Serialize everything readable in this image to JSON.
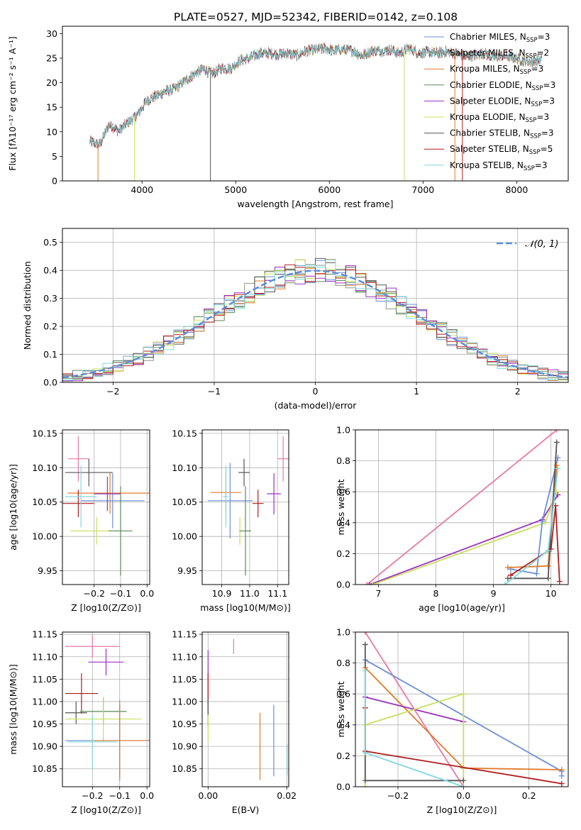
{
  "page": {
    "title": "PLATE=0527, MJD=52342, FIBERID=0142, z=0.108"
  },
  "colors": {
    "chabrier_miles": "#6a8fd8",
    "salpeter_miles": "#8a9a8a",
    "kroupa_miles": "#e07b2a",
    "chabrier_elodie": "#5a8a5a",
    "salpeter_elodie": "#9b30c0",
    "kroupa_elodie": "#c8e05a",
    "chabrier_stelib": "#555555",
    "salpeter_stelib": "#b01c1c",
    "kroupa_stelib": "#80d8e0",
    "pink": "#e87aa8",
    "normal_curve": "#5b8ee0",
    "grid": "#b0b0b0"
  },
  "chart_data": [
    {
      "id": "spectrum",
      "type": "line",
      "title": "PLATE=0527, MJD=52342, FIBERID=0142, z=0.108",
      "xlabel": "wavelength [Angstrom, rest frame]",
      "ylabel": "Flux [fλ10⁻¹⁷ erg cm⁻² s⁻¹ A⁻¹]",
      "xlim": [
        3150,
        8550
      ],
      "ylim": [
        0,
        31.5
      ],
      "xticks": [
        4000,
        5000,
        6000,
        7000,
        8000
      ],
      "yticks": [
        0,
        5,
        10,
        15,
        20,
        25,
        30
      ],
      "grid": false,
      "legend_position": "top-right",
      "legend": [
        "Chabrier MILES, N_SSP=3",
        "Salpeter MILES, N_SSP=2",
        "Kroupa MILES, N_SSP=3",
        "Chabrier ELODIE, N_SSP=3",
        "Salpeter ELODIE, N_SSP=3",
        "Kroupa ELODIE, N_SSP=3",
        "Chabrier STELIB, N_SSP=3",
        "Salpeter STELIB, N_SSP=5",
        "Kroupa STELIB, N_SSP=3"
      ],
      "continuum": {
        "x": [
          3450,
          3550,
          3650,
          3750,
          3850,
          3950,
          4050,
          4150,
          4250,
          4350,
          4450,
          4550,
          4650,
          4750,
          4850,
          4950,
          5050,
          5150,
          5250,
          5350,
          5450,
          5550,
          5650,
          5750,
          5850,
          5950,
          6050,
          6150,
          6250,
          6350,
          6450,
          6550,
          6650,
          6750,
          6850,
          6950,
          7050,
          7150,
          7250,
          7350,
          7450,
          7550,
          7650,
          7750,
          7850,
          7950,
          8050,
          8150,
          8250
        ],
        "y": [
          8.0,
          7.4,
          11.5,
          10.2,
          11.8,
          13.5,
          16.3,
          17.3,
          18.2,
          18.8,
          20.3,
          21.6,
          22.8,
          21.8,
          23.0,
          22.9,
          24.6,
          25.0,
          26.0,
          26.0,
          25.8,
          26.0,
          25.6,
          26.4,
          26.7,
          27.0,
          26.5,
          26.8,
          26.5,
          25.5,
          26.5,
          26.5,
          26.7,
          26.0,
          27.1,
          26.0,
          26.2,
          26.0,
          26.3,
          26.0,
          25.3,
          25.6,
          26.0,
          25.1,
          25.5,
          25.2,
          24.6,
          24.3,
          24.6
        ]
      },
      "dropouts": [
        {
          "x": 3530,
          "series": "kroupa_miles"
        },
        {
          "x": 3920,
          "series": "kroupa_elodie"
        },
        {
          "x": 4730,
          "series": "chabrier_stelib"
        },
        {
          "x": 6800,
          "series": "kroupa_elodie"
        },
        {
          "x": 7340,
          "series": "kroupa_miles"
        },
        {
          "x": 7420,
          "series": "salpeter_stelib"
        }
      ]
    },
    {
      "id": "residual-histogram",
      "type": "line",
      "xlabel": "(data-model)/error",
      "ylabel": "Normed distribution",
      "xlim": [
        -2.5,
        2.5
      ],
      "ylim": [
        0,
        0.55
      ],
      "xticks": [
        -2,
        -1,
        0,
        1,
        2
      ],
      "yticks": [
        0.0,
        0.1,
        0.2,
        0.3,
        0.4,
        0.5
      ],
      "grid": true,
      "legend_position": "top-right",
      "legend": [
        "N(0,1)"
      ]
    },
    {
      "id": "age-vs-Z",
      "type": "scatter",
      "xlabel": "Z [log10(Z/Z⊙)]",
      "ylabel": "age [log10(age/yr)]",
      "xlim": [
        -0.32,
        0.01
      ],
      "ylim": [
        9.93,
        10.155
      ],
      "xticks": [
        -0.2,
        -0.1,
        0.0
      ],
      "yticks": [
        9.95,
        10.0,
        10.05,
        10.1,
        10.15
      ],
      "grid": true,
      "points": [
        {
          "series": "pink",
          "x": -0.26,
          "xerr": 0.04,
          "y": 10.113,
          "yerr": 0.033
        },
        {
          "series": "chabrier_stelib",
          "x": -0.22,
          "xerr": 0.09,
          "y": 10.093,
          "yerr": 0.02
        },
        {
          "series": "kroupa_miles",
          "x": -0.14,
          "xerr": 0.16,
          "y": 10.063,
          "yerr": 0.03
        },
        {
          "series": "chabrier_miles",
          "x": -0.13,
          "xerr": 0.12,
          "y": 10.052,
          "yerr": 0.04
        },
        {
          "series": "salpeter_elodie",
          "x": -0.15,
          "xerr": 0.05,
          "y": 10.062,
          "yerr": 0.025
        },
        {
          "series": "salpeter_stelib",
          "x": -0.26,
          "xerr": 0.06,
          "y": 10.048,
          "yerr": 0.02
        },
        {
          "series": "kroupa_stelib",
          "x": -0.25,
          "xerr": 0.06,
          "y": 10.058,
          "yerr": 0.045
        },
        {
          "series": "kroupa_elodie",
          "x": -0.19,
          "xerr": 0.1,
          "y": 10.008,
          "yerr": 0.02
        },
        {
          "series": "chabrier_elodie",
          "x": -0.1,
          "xerr": 0.045,
          "y": 10.008,
          "yerr": 0.065
        }
      ]
    },
    {
      "id": "age-vs-mass",
      "type": "scatter",
      "xlabel": "mass [log10(M/M⊙)]",
      "xlim": [
        10.83,
        11.14
      ],
      "ylim": [
        9.93,
        10.155
      ],
      "xticks": [
        10.9,
        11.0,
        11.1
      ],
      "yticks": [
        9.95,
        10.0,
        10.05,
        10.1,
        10.15
      ],
      "grid": true,
      "points": [
        {
          "series": "pink",
          "x": 11.12,
          "xerr": 0.02,
          "y": 10.113,
          "yerr": 0.033
        },
        {
          "series": "chabrier_stelib",
          "x": 10.98,
          "xerr": 0.02,
          "y": 10.093,
          "yerr": 0.02
        },
        {
          "series": "kroupa_miles",
          "x": 10.915,
          "xerr": 0.055,
          "y": 10.064,
          "yerr": 0.03
        },
        {
          "series": "chabrier_miles",
          "x": 10.93,
          "xerr": 0.08,
          "y": 10.052,
          "yerr": 0.055
        },
        {
          "series": "salpeter_elodie",
          "x": 11.087,
          "xerr": 0.025,
          "y": 10.062,
          "yerr": 0.03
        },
        {
          "series": "salpeter_stelib",
          "x": 11.03,
          "xerr": 0.02,
          "y": 10.048,
          "yerr": 0.02
        },
        {
          "series": "kroupa_stelib",
          "x": 10.915,
          "xerr": 0.01,
          "y": 10.058,
          "yerr": 0.045
        },
        {
          "series": "kroupa_elodie",
          "x": 10.965,
          "xerr": 0.005,
          "y": 10.008,
          "yerr": 0.02
        },
        {
          "series": "chabrier_elodie",
          "x": 10.985,
          "xerr": 0.02,
          "y": 10.008,
          "yerr": 0.065
        }
      ]
    },
    {
      "id": "weight-vs-age",
      "type": "line",
      "xlabel": "age [log10(age/yr)]",
      "ylabel": "mass weight",
      "xlim": [
        6.6,
        10.3
      ],
      "ylim": [
        0,
        1.0
      ],
      "xticks": [
        7,
        8,
        9,
        10
      ],
      "yticks": [
        0.0,
        0.2,
        0.4,
        0.6,
        0.8,
        1.0
      ],
      "grid": true,
      "series": [
        {
          "series": "pink",
          "x": [
            6.8,
            10.1
          ],
          "y": [
            0.0,
            1.0
          ]
        },
        {
          "series": "salpeter_elodie",
          "x": [
            6.85,
            9.85,
            10.12
          ],
          "y": [
            0.0,
            0.42,
            0.58
          ]
        },
        {
          "series": "kroupa_elodie",
          "x": [
            6.9,
            9.9,
            10.1
          ],
          "y": [
            0.0,
            0.4,
            0.6
          ]
        },
        {
          "series": "chabrier_miles",
          "x": [
            9.3,
            9.75,
            9.85,
            10.12
          ],
          "y": [
            0.1,
            0.07,
            0.41,
            0.82
          ]
        },
        {
          "series": "kroupa_miles",
          "x": [
            9.25,
            9.95,
            10.1
          ],
          "y": [
            0.11,
            0.12,
            0.77
          ]
        },
        {
          "series": "chabrier_stelib",
          "x": [
            9.25,
            9.95,
            10.1
          ],
          "y": [
            0.04,
            0.04,
            0.92
          ]
        },
        {
          "series": "salpeter_stelib",
          "x": [
            9.3,
            10.0,
            10.08,
            10.15
          ],
          "y": [
            0.06,
            0.23,
            0.51,
            0.02
          ]
        },
        {
          "series": "kroupa_stelib",
          "x": [
            9.2,
            9.95,
            10.12
          ],
          "y": [
            0.0,
            0.22,
            0.75
          ]
        }
      ]
    },
    {
      "id": "mass-vs-Z",
      "type": "scatter",
      "xlabel": "Z [log10(Z/Z⊙)]",
      "ylabel": "mass [log10(M/M⊙)]",
      "xlim": [
        -0.31,
        0.01
      ],
      "ylim": [
        10.81,
        11.155
      ],
      "xticks": [
        -0.2,
        -0.1,
        0.0
      ],
      "yticks": [
        10.85,
        10.9,
        10.95,
        11.0,
        11.05,
        11.1,
        11.15
      ],
      "grid": true,
      "points": [
        {
          "series": "pink",
          "x": -0.2,
          "xerr": 0.1,
          "y": 11.123,
          "yerr": 0.025
        },
        {
          "series": "salpeter_elodie",
          "x": -0.15,
          "xerr": 0.065,
          "y": 11.088,
          "yerr": 0.03
        },
        {
          "series": "salpeter_stelib",
          "x": -0.24,
          "xerr": 0.06,
          "y": 11.018,
          "yerr": 0.045
        },
        {
          "series": "chabrier_elodie",
          "x": -0.16,
          "xerr": 0.085,
          "y": 10.978,
          "yerr": 0.03
        },
        {
          "series": "chabrier_stelib",
          "x": -0.26,
          "xerr": 0.04,
          "y": 10.975,
          "yerr": 0.025
        },
        {
          "series": "kroupa_elodie",
          "x": -0.16,
          "xerr": 0.14,
          "y": 10.961,
          "yerr": 0.05
        },
        {
          "series": "chabrier_miles",
          "x": -0.1,
          "xerr": 0.2,
          "y": 10.913,
          "yerr": 0.08
        },
        {
          "series": "kroupa_miles",
          "x": -0.1,
          "xerr": 0.1,
          "y": 10.913,
          "yerr": 0.09
        },
        {
          "series": "kroupa_stelib",
          "x": -0.2,
          "xerr": 0.09,
          "y": 10.91,
          "yerr": 0.06
        }
      ]
    },
    {
      "id": "mass-vs-EBV",
      "type": "scatter",
      "xlabel": "E(B-V)",
      "xlim": [
        -0.0015,
        0.0205
      ],
      "ylim": [
        10.81,
        11.155
      ],
      "xticks": [
        0.0,
        0.02
      ],
      "yticks": [
        10.85,
        10.9,
        10.95,
        11.0,
        11.05,
        11.1,
        11.15
      ],
      "grid": true,
      "points": [
        {
          "series": "pink",
          "x": 0.0065,
          "xerr": 0.0,
          "y": 11.123,
          "yerr": 0.017
        },
        {
          "series": "salpeter_elodie",
          "x": 0.0,
          "xerr": 0.0,
          "y": 11.055,
          "yerr": 0.06
        },
        {
          "series": "salpeter_stelib",
          "x": 0.0,
          "xerr": 0.0,
          "y": 11.018,
          "yerr": 0.045
        },
        {
          "series": "chabrier_stelib",
          "x": 0.0,
          "xerr": 0.0,
          "y": 10.975,
          "yerr": 0.03
        },
        {
          "series": "kroupa_elodie",
          "x": 0.0,
          "xerr": 0.0,
          "y": 10.94,
          "yerr": 0.03
        },
        {
          "series": "kroupa_miles",
          "x": 0.0132,
          "xerr": 0.0,
          "y": 10.9,
          "yerr": 0.075
        },
        {
          "series": "chabrier_miles",
          "x": 0.0167,
          "xerr": 0.0,
          "y": 10.913,
          "yerr": 0.08
        },
        {
          "series": "kroupa_stelib",
          "x": 0.0201,
          "xerr": 0.0,
          "y": 10.87,
          "yerr": 0.035
        }
      ]
    },
    {
      "id": "weight-vs-Z",
      "type": "line",
      "xlabel": "Z [log10(Z/Z⊙)]",
      "ylabel": "mass weight",
      "xlim": [
        -0.33,
        0.32
      ],
      "ylim": [
        0,
        1.0
      ],
      "xticks": [
        -0.2,
        0.0,
        0.2
      ],
      "yticks": [
        0.0,
        0.2,
        0.4,
        0.6,
        0.8,
        1.0
      ],
      "grid": true,
      "series": [
        {
          "series": "pink",
          "x": [
            -0.3,
            0.0
          ],
          "y": [
            1.0,
            0.0
          ]
        },
        {
          "series": "chabrier_miles",
          "x": [
            -0.3,
            0.3,
            0.3
          ],
          "y": [
            0.82,
            0.1,
            0.07
          ]
        },
        {
          "series": "kroupa_miles",
          "x": [
            -0.3,
            0.0,
            0.3
          ],
          "y": [
            0.77,
            0.12,
            0.11
          ]
        },
        {
          "series": "salpeter_elodie",
          "x": [
            -0.3,
            0.0
          ],
          "y": [
            0.58,
            0.42
          ]
        },
        {
          "series": "kroupa_elodie",
          "x": [
            -0.3,
            -0.3,
            0.0,
            0.0
          ],
          "y": [
            0.0,
            0.4,
            0.6,
            0.0
          ]
        },
        {
          "series": "chabrier_stelib",
          "x": [
            -0.3,
            -0.3,
            0.0
          ],
          "y": [
            0.92,
            0.04,
            0.04
          ]
        },
        {
          "series": "salpeter_stelib",
          "x": [
            -0.3,
            -0.3,
            0.3
          ],
          "y": [
            0.51,
            0.23,
            0.02
          ]
        },
        {
          "series": "kroupa_stelib",
          "x": [
            -0.3,
            -0.3,
            0.0
          ],
          "y": [
            0.75,
            0.22,
            0.0
          ]
        }
      ]
    }
  ]
}
